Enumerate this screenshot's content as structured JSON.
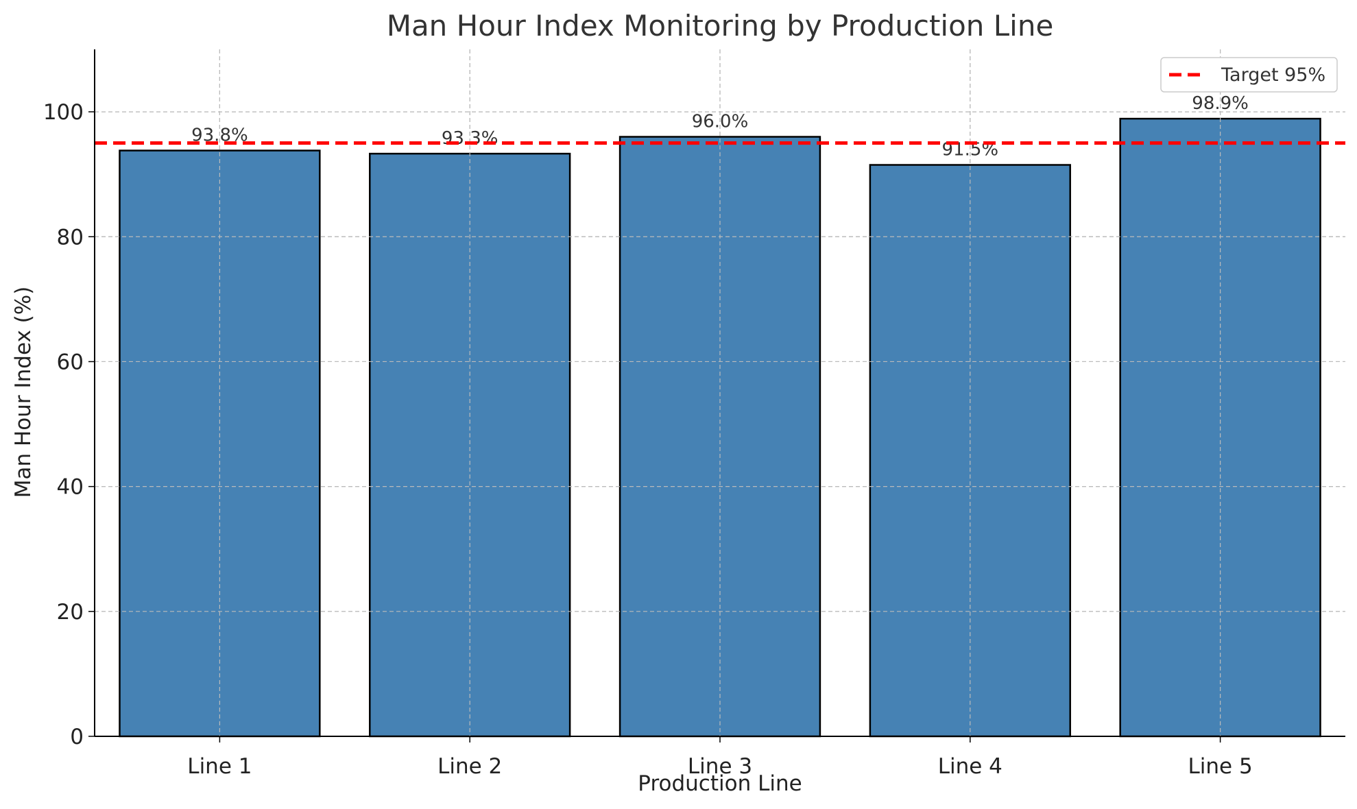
{
  "chart_data": {
    "type": "bar",
    "title": "Man Hour Index Monitoring by Production Line",
    "xlabel": "Production Line",
    "ylabel": "Man Hour Index (%)",
    "categories": [
      "Line 1",
      "Line 2",
      "Line 3",
      "Line 4",
      "Line 5"
    ],
    "values": [
      93.8,
      93.3,
      96.0,
      91.5,
      98.9
    ],
    "value_labels": [
      "93.8%",
      "93.3%",
      "96.0%",
      "91.5%",
      "98.9%"
    ],
    "ylim": [
      0,
      110
    ],
    "yticks": [
      0,
      20,
      40,
      60,
      80,
      100
    ],
    "grid": true,
    "bar_color": "#4682B4",
    "bar_edge_color": "#000000",
    "target": {
      "value": 95,
      "label": "Target 95%",
      "color": "#FF0000",
      "style": "dashed"
    },
    "legend_position": "top-right"
  }
}
